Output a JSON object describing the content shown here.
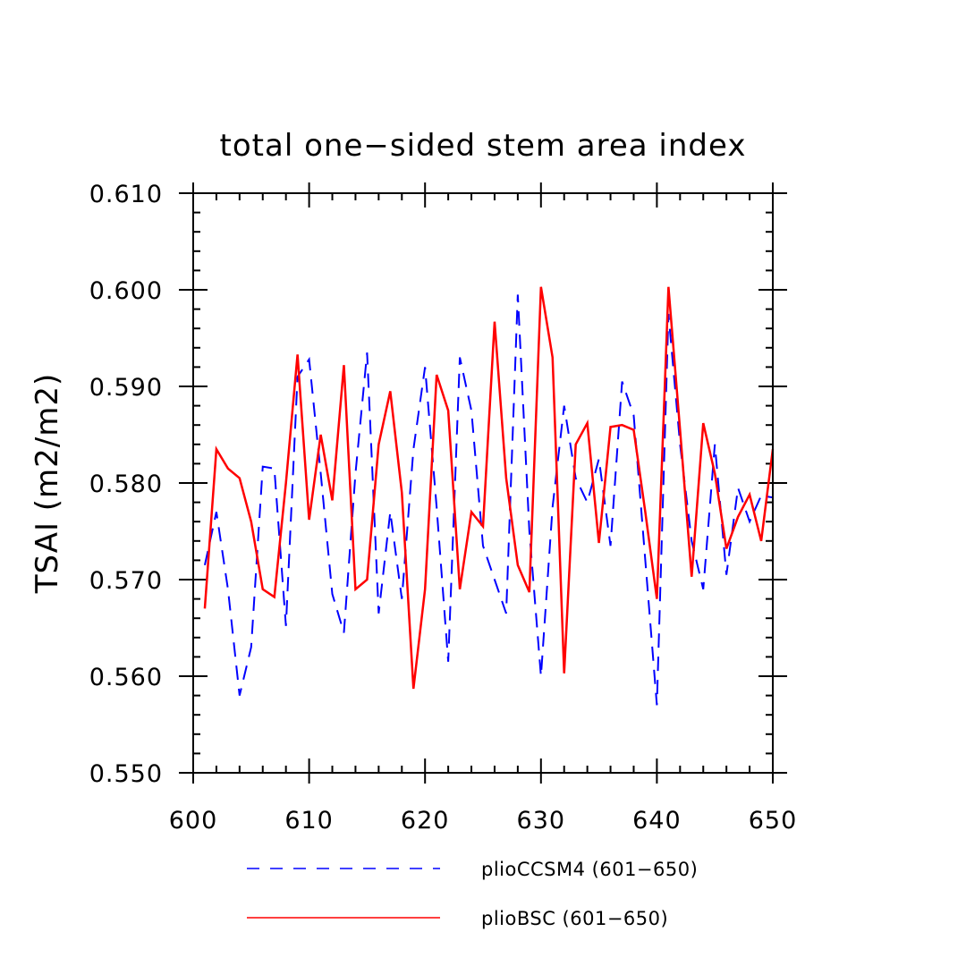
{
  "chart_data": {
    "type": "line",
    "title": "total one−sided stem area index",
    "xlabel": "",
    "ylabel": "TSAI  (m2/m2)",
    "xlim": [
      600,
      650
    ],
    "ylim": [
      0.55,
      0.61
    ],
    "x_ticks": [
      600,
      610,
      620,
      630,
      640,
      650
    ],
    "x_tick_labels": [
      "600",
      "610",
      "620",
      "630",
      "640",
      "650"
    ],
    "y_ticks": [
      0.55,
      0.56,
      0.57,
      0.58,
      0.59,
      0.6,
      0.61
    ],
    "y_tick_labels": [
      "0.550",
      "0.560",
      "0.570",
      "0.580",
      "0.590",
      "0.600",
      "0.610"
    ],
    "grid": false,
    "legend_position": "bottom",
    "x": [
      601,
      602,
      603,
      604,
      605,
      606,
      607,
      608,
      609,
      610,
      611,
      612,
      613,
      614,
      615,
      616,
      617,
      618,
      619,
      620,
      621,
      622,
      623,
      624,
      625,
      626,
      627,
      628,
      629,
      630,
      631,
      632,
      633,
      634,
      635,
      636,
      637,
      638,
      639,
      640,
      641,
      642,
      643,
      644,
      645,
      646,
      647,
      648,
      649,
      650
    ],
    "series": [
      {
        "name": "plioCCSM4 (601−650)",
        "color": "#0000ff",
        "style": "dashed",
        "values": [
          0.5715,
          0.577,
          0.569,
          0.558,
          0.563,
          0.5817,
          0.5815,
          0.5652,
          0.591,
          0.5928,
          0.581,
          0.5685,
          0.5645,
          0.581,
          0.5935,
          0.5665,
          0.577,
          0.568,
          0.5835,
          0.592,
          0.5775,
          0.5615,
          0.593,
          0.5875,
          0.5735,
          0.57,
          0.5665,
          0.5995,
          0.575,
          0.56,
          0.5775,
          0.588,
          0.5805,
          0.578,
          0.5825,
          0.5735,
          0.5905,
          0.587,
          0.572,
          0.557,
          0.5975,
          0.584,
          0.574,
          0.569,
          0.584,
          0.5705,
          0.5795,
          0.576,
          0.5787,
          0.5785
        ]
      },
      {
        "name": "plioBSC (601−650)",
        "color": "#ff0000",
        "style": "solid",
        "values": [
          0.567,
          0.5835,
          0.5815,
          0.5805,
          0.576,
          0.569,
          0.5682,
          0.58,
          0.5933,
          0.5762,
          0.585,
          0.5782,
          0.5922,
          0.569,
          0.57,
          0.584,
          0.5895,
          0.579,
          0.5587,
          0.569,
          0.5912,
          0.5875,
          0.569,
          0.577,
          0.5755,
          0.5967,
          0.5805,
          0.5715,
          0.5687,
          0.6003,
          0.593,
          0.5603,
          0.584,
          0.5862,
          0.5738,
          0.5858,
          0.586,
          0.5855,
          0.577,
          0.568,
          0.6003,
          0.5855,
          0.5703,
          0.5862,
          0.581,
          0.5732,
          0.5765,
          0.5788,
          0.574,
          0.5835
        ]
      }
    ]
  }
}
